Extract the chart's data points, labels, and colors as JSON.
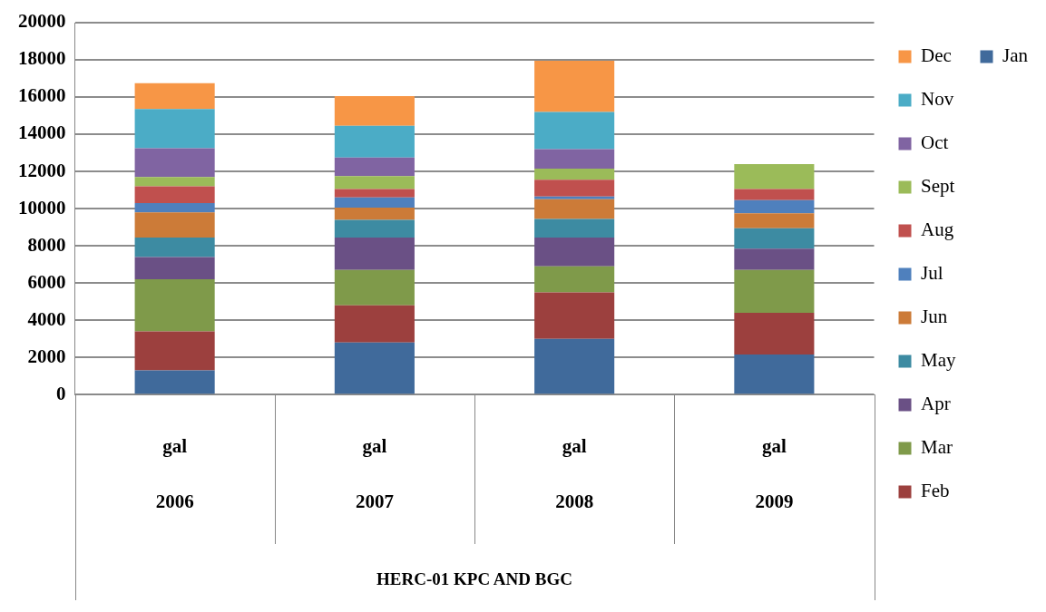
{
  "chart_data": {
    "type": "bar",
    "stacked": true,
    "categories": [
      "gal\n2006",
      "gal\n2007",
      "gal\n2008",
      "gal\n2009"
    ],
    "annotations": [
      "HERC-01 KPC AND BGC"
    ],
    "series": [
      {
        "name": "Jan",
        "color": "#406a9b",
        "values": [
          1300,
          2800,
          3000,
          2150
        ]
      },
      {
        "name": "Feb",
        "color": "#9c403e",
        "values": [
          2100,
          2000,
          2500,
          2250
        ]
      },
      {
        "name": "Mar",
        "color": "#7f9a4a",
        "values": [
          2800,
          1900,
          1400,
          2300
        ]
      },
      {
        "name": "Apr",
        "color": "#6a5085",
        "values": [
          1200,
          1750,
          1550,
          1150
        ]
      },
      {
        "name": "May",
        "color": "#3d8ba2",
        "values": [
          1050,
          950,
          1000,
          1100
        ]
      },
      {
        "name": "Jun",
        "color": "#cc7b38",
        "values": [
          1350,
          650,
          1050,
          800
        ]
      },
      {
        "name": "Jul",
        "color": "#4f80bd",
        "values": [
          500,
          550,
          150,
          700
        ]
      },
      {
        "name": "Aug",
        "color": "#c0504e",
        "values": [
          900,
          450,
          900,
          600
        ]
      },
      {
        "name": "Sept",
        "color": "#9bbb59",
        "values": [
          500,
          700,
          600,
          1350
        ]
      },
      {
        "name": "Oct",
        "color": "#8064a2",
        "values": [
          1550,
          1000,
          1050,
          null
        ]
      },
      {
        "name": "Nov",
        "color": "#4bacc6",
        "values": [
          2100,
          1700,
          2000,
          null
        ]
      },
      {
        "name": "Dec",
        "color": "#f79646",
        "values": [
          1400,
          1600,
          2750,
          null
        ]
      }
    ],
    "ylim": [
      0,
      20000
    ],
    "yticks": [
      0,
      2000,
      4000,
      6000,
      8000,
      10000,
      12000,
      14000,
      16000,
      18000,
      20000
    ],
    "grid": "y",
    "legend": "right"
  }
}
